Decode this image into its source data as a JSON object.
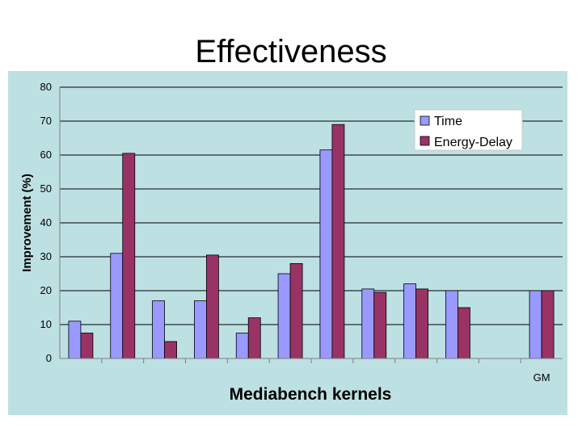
{
  "slide": {
    "title": "Effectiveness"
  },
  "colors": {
    "background": "#bde0e3",
    "series_time": "#9999ff",
    "series_ed": "#993366"
  },
  "chart_data": {
    "type": "bar",
    "title": "",
    "xlabel": "Mediabench kernels",
    "ylabel": "Improvement (%)",
    "ylim": [
      0,
      80
    ],
    "yticks": [
      0,
      10,
      20,
      30,
      40,
      50,
      60,
      70,
      80
    ],
    "grid": true,
    "legend_position": "top-right",
    "categories": [
      "",
      "",
      "",
      "",
      "",
      "",
      "",
      "",
      "",
      "",
      "",
      "GM"
    ],
    "series": [
      {
        "name": "Time",
        "values": [
          11,
          31,
          17,
          17,
          7.5,
          25,
          61.5,
          20.5,
          22,
          20,
          null,
          20
        ]
      },
      {
        "name": "Energy-Delay",
        "values": [
          7.5,
          60.5,
          5,
          30.5,
          12,
          28,
          69,
          19.5,
          20.5,
          15,
          null,
          20
        ]
      }
    ]
  }
}
